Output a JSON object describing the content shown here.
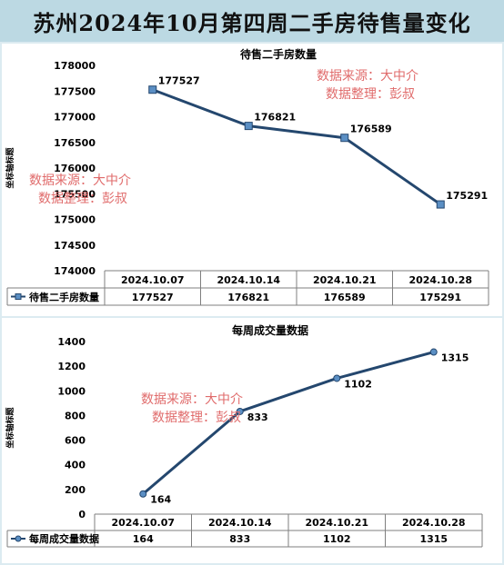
{
  "title": "苏州2024年10月第四周二手房待售量变化",
  "watermark": {
    "line1": "数据来源：大中介",
    "line2": "数据整理：彭叔"
  },
  "colors": {
    "line": "#24476e",
    "marker_fill": "#5b8fc4",
    "watermark": "#e06b6b"
  },
  "chart_data": [
    {
      "type": "line",
      "title": "待售二手房数量",
      "ylabel": "坐标轴标题",
      "categories": [
        "2024.10.07",
        "2024.10.14",
        "2024.10.21",
        "2024.10.28"
      ],
      "series": [
        {
          "name": "待售二手房数量",
          "values": [
            177527,
            176821,
            176589,
            175291
          ]
        }
      ],
      "ylim": [
        174000,
        178000
      ],
      "yticks": [
        "178000",
        "177500",
        "177000",
        "176500",
        "176000",
        "175500",
        "175000",
        "174500",
        "174000"
      ],
      "marker": "square",
      "data_table": true
    },
    {
      "type": "line",
      "title": "每周成交量数据",
      "ylabel": "坐标轴标题",
      "categories": [
        "2024.10.07",
        "2024.10.14",
        "2024.10.21",
        "2024.10.28"
      ],
      "series": [
        {
          "name": "每周成交量数据",
          "values": [
            164,
            833,
            1102,
            1315
          ]
        }
      ],
      "ylim": [
        0,
        1400
      ],
      "yticks": [
        "1400",
        "1200",
        "1000",
        "800",
        "600",
        "400",
        "200",
        "0"
      ],
      "marker": "circle",
      "data_table": true
    }
  ]
}
